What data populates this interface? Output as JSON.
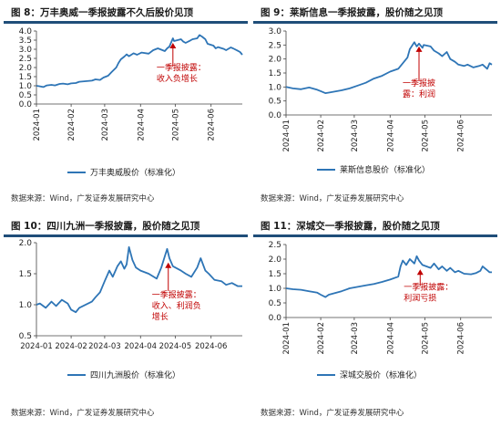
{
  "chart_data": [
    {
      "type": "line",
      "title": "图 8：万丰奥威一季报披露不久后股价见顶",
      "source": "数据来源：Wind，广发证券发展研究中心",
      "legend": "万丰奥威股价（标准化）",
      "legend_position": "bottom-center",
      "grid": false,
      "xlabel": "",
      "ylabel": "",
      "ylim": [
        0.0,
        4.0
      ],
      "yticks": [
        "0.0",
        "0.5",
        "1.0",
        "1.5",
        "2.0",
        "2.5",
        "3.0",
        "3.5",
        "4.0"
      ],
      "x_range": [
        "2024-01-02",
        "2024-06-28"
      ],
      "xticks": [
        {
          "date": "2024-01-01",
          "label": "2024-01"
        },
        {
          "date": "2024-02-01",
          "label": "2024-02"
        },
        {
          "date": "2024-03-01",
          "label": "2024-03"
        },
        {
          "date": "2024-04-01",
          "label": "2024-04"
        },
        {
          "date": "2024-05-01",
          "label": "2024-05"
        },
        {
          "date": "2024-06-01",
          "label": "2024-06"
        }
      ],
      "series": [
        {
          "color": "#2e75b6",
          "points": [
            [
              "2024-01-02",
              1.0
            ],
            [
              "2024-01-05",
              0.97
            ],
            [
              "2024-01-08",
              0.93
            ],
            [
              "2024-01-11",
              1.02
            ],
            [
              "2024-01-15",
              1.05
            ],
            [
              "2024-01-18",
              1.02
            ],
            [
              "2024-01-22",
              1.1
            ],
            [
              "2024-01-25",
              1.12
            ],
            [
              "2024-01-29",
              1.08
            ],
            [
              "2024-02-01",
              1.13
            ],
            [
              "2024-02-05",
              1.15
            ],
            [
              "2024-02-08",
              1.22
            ],
            [
              "2024-02-19",
              1.28
            ],
            [
              "2024-02-22",
              1.35
            ],
            [
              "2024-02-26",
              1.32
            ],
            [
              "2024-02-29",
              1.45
            ],
            [
              "2024-03-04",
              1.55
            ],
            [
              "2024-03-07",
              1.75
            ],
            [
              "2024-03-11",
              2.0
            ],
            [
              "2024-03-13",
              2.25
            ],
            [
              "2024-03-15",
              2.45
            ],
            [
              "2024-03-18",
              2.6
            ],
            [
              "2024-03-20",
              2.72
            ],
            [
              "2024-03-22",
              2.62
            ],
            [
              "2024-03-26",
              2.78
            ],
            [
              "2024-03-29",
              2.7
            ],
            [
              "2024-04-02",
              2.82
            ],
            [
              "2024-04-08",
              2.76
            ],
            [
              "2024-04-12",
              2.95
            ],
            [
              "2024-04-16",
              3.05
            ],
            [
              "2024-04-18",
              3.0
            ],
            [
              "2024-04-22",
              2.9
            ],
            [
              "2024-04-24",
              3.05
            ],
            [
              "2024-04-26",
              3.15
            ],
            [
              "2024-04-29",
              3.6
            ],
            [
              "2024-04-30",
              3.45
            ],
            [
              "2024-05-06",
              3.55
            ],
            [
              "2024-05-08",
              3.42
            ],
            [
              "2024-05-10",
              3.35
            ],
            [
              "2024-05-14",
              3.48
            ],
            [
              "2024-05-16",
              3.55
            ],
            [
              "2024-05-20",
              3.6
            ],
            [
              "2024-05-22",
              3.78
            ],
            [
              "2024-05-24",
              3.7
            ],
            [
              "2024-05-27",
              3.55
            ],
            [
              "2024-05-29",
              3.3
            ],
            [
              "2024-06-03",
              3.2
            ],
            [
              "2024-06-05",
              3.05
            ],
            [
              "2024-06-07",
              3.12
            ],
            [
              "2024-06-12",
              3.02
            ],
            [
              "2024-06-14",
              2.95
            ],
            [
              "2024-06-18",
              3.1
            ],
            [
              "2024-06-20",
              3.05
            ],
            [
              "2024-06-24",
              2.92
            ],
            [
              "2024-06-26",
              2.85
            ],
            [
              "2024-06-28",
              2.7
            ]
          ]
        }
      ],
      "annotation": {
        "lines": [
          "一季报披露：",
          "收入负增长"
        ],
        "arrow_date": "2024-04-29",
        "arrow_tip_y": 3.35,
        "arrow_tail_y": 2.05,
        "label_y": 1.85,
        "color": "#c00000"
      }
    },
    {
      "type": "line",
      "title": "图 9：莱斯信息一季报披露，股价随之见顶",
      "source": "数据来源：Wind，广发证券发展研究中心",
      "legend": "莱斯信息股价（标准化）",
      "legend_position": "bottom-center",
      "grid": false,
      "xlabel": "",
      "ylabel": "",
      "ylim": [
        0.0,
        3.0
      ],
      "yticks": [
        "0.0",
        "0.5",
        "1.0",
        "1.5",
        "2.0",
        "2.5",
        "3.0"
      ],
      "x_range": [
        "2024-01-02",
        "2024-06-28"
      ],
      "xticks": [
        {
          "date": "2024-01-01",
          "label": "2024-01"
        },
        {
          "date": "2024-02-01",
          "label": "2024-02"
        },
        {
          "date": "2024-03-01",
          "label": "2024-03"
        },
        {
          "date": "2024-04-01",
          "label": "2024-04"
        },
        {
          "date": "2024-05-01",
          "label": "2024-05"
        },
        {
          "date": "2024-06-01",
          "label": "2024-06"
        }
      ],
      "series": [
        {
          "color": "#2e75b6",
          "points": [
            [
              "2024-01-02",
              1.0
            ],
            [
              "2024-01-08",
              0.95
            ],
            [
              "2024-01-15",
              0.92
            ],
            [
              "2024-01-22",
              0.98
            ],
            [
              "2024-01-29",
              0.9
            ],
            [
              "2024-02-01",
              0.85
            ],
            [
              "2024-02-05",
              0.78
            ],
            [
              "2024-02-08",
              0.8
            ],
            [
              "2024-02-19",
              0.88
            ],
            [
              "2024-02-26",
              0.95
            ],
            [
              "2024-03-04",
              1.05
            ],
            [
              "2024-03-11",
              1.15
            ],
            [
              "2024-03-18",
              1.3
            ],
            [
              "2024-03-25",
              1.4
            ],
            [
              "2024-04-01",
              1.55
            ],
            [
              "2024-04-08",
              1.65
            ],
            [
              "2024-04-12",
              1.85
            ],
            [
              "2024-04-16",
              2.05
            ],
            [
              "2024-04-18",
              2.35
            ],
            [
              "2024-04-22",
              2.6
            ],
            [
              "2024-04-24",
              2.45
            ],
            [
              "2024-04-26",
              2.55
            ],
            [
              "2024-04-29",
              2.4
            ],
            [
              "2024-04-30",
              2.5
            ],
            [
              "2024-05-06",
              2.45
            ],
            [
              "2024-05-09",
              2.3
            ],
            [
              "2024-05-13",
              2.2
            ],
            [
              "2024-05-16",
              2.1
            ],
            [
              "2024-05-20",
              2.25
            ],
            [
              "2024-05-23",
              2.0
            ],
            [
              "2024-05-27",
              1.9
            ],
            [
              "2024-05-30",
              1.8
            ],
            [
              "2024-06-04",
              1.75
            ],
            [
              "2024-06-07",
              1.8
            ],
            [
              "2024-06-12",
              1.7
            ],
            [
              "2024-06-17",
              1.75
            ],
            [
              "2024-06-20",
              1.8
            ],
            [
              "2024-06-24",
              1.65
            ],
            [
              "2024-06-26",
              1.85
            ],
            [
              "2024-06-28",
              1.8
            ]
          ]
        }
      ],
      "annotation": {
        "lines": [
          "一季报披",
          "露：利润"
        ],
        "arrow_date": "2024-04-26",
        "arrow_tip_y": 2.45,
        "arrow_tail_y": 1.22,
        "label_y": 1.05,
        "color": "#c00000"
      }
    },
    {
      "type": "line",
      "title": "图 10：四川九洲一季报披露，股价随之见顶",
      "source": "数据来源：Wind，广发证券发展研究中心",
      "legend": "四川九洲股价（标准化）",
      "legend_position": "bottom-center",
      "grid": false,
      "xlabel": "",
      "ylabel": "",
      "ylim": [
        0.5,
        2.0
      ],
      "yticks": [
        "0.5",
        "1.0",
        "1.5",
        "2.0"
      ],
      "x_range": [
        "2024-01-02",
        "2024-06-28"
      ],
      "xticks": [
        {
          "date": "2024-01-01",
          "label": "2024-01"
        },
        {
          "date": "2024-02-01",
          "label": "2024-02"
        },
        {
          "date": "2024-03-01",
          "label": "2024-03"
        },
        {
          "date": "2024-04-01",
          "label": "2024-04"
        },
        {
          "date": "2024-05-01",
          "label": "2024-05"
        },
        {
          "date": "2024-06-01",
          "label": "2024-06"
        }
      ],
      "series": [
        {
          "color": "#2e75b6",
          "points": [
            [
              "2024-01-02",
              1.0
            ],
            [
              "2024-01-05",
              1.02
            ],
            [
              "2024-01-10",
              0.95
            ],
            [
              "2024-01-15",
              1.05
            ],
            [
              "2024-01-19",
              0.98
            ],
            [
              "2024-01-24",
              1.08
            ],
            [
              "2024-01-29",
              1.02
            ],
            [
              "2024-02-01",
              0.92
            ],
            [
              "2024-02-05",
              0.88
            ],
            [
              "2024-02-08",
              0.95
            ],
            [
              "2024-02-19",
              1.05
            ],
            [
              "2024-02-22",
              1.12
            ],
            [
              "2024-02-26",
              1.2
            ],
            [
              "2024-03-01",
              1.38
            ],
            [
              "2024-03-05",
              1.55
            ],
            [
              "2024-03-08",
              1.45
            ],
            [
              "2024-03-12",
              1.62
            ],
            [
              "2024-03-15",
              1.7
            ],
            [
              "2024-03-18",
              1.58
            ],
            [
              "2024-03-20",
              1.65
            ],
            [
              "2024-03-22",
              1.93
            ],
            [
              "2024-03-25",
              1.72
            ],
            [
              "2024-03-28",
              1.6
            ],
            [
              "2024-04-01",
              1.55
            ],
            [
              "2024-04-08",
              1.5
            ],
            [
              "2024-04-15",
              1.42
            ],
            [
              "2024-04-19",
              1.6
            ],
            [
              "2024-04-22",
              1.78
            ],
            [
              "2024-04-24",
              1.9
            ],
            [
              "2024-04-26",
              1.75
            ],
            [
              "2024-04-29",
              1.62
            ],
            [
              "2024-05-06",
              1.55
            ],
            [
              "2024-05-10",
              1.5
            ],
            [
              "2024-05-15",
              1.45
            ],
            [
              "2024-05-20",
              1.6
            ],
            [
              "2024-05-23",
              1.75
            ],
            [
              "2024-05-27",
              1.55
            ],
            [
              "2024-05-30",
              1.5
            ],
            [
              "2024-06-04",
              1.4
            ],
            [
              "2024-06-10",
              1.38
            ],
            [
              "2024-06-14",
              1.32
            ],
            [
              "2024-06-19",
              1.35
            ],
            [
              "2024-06-24",
              1.3
            ],
            [
              "2024-06-28",
              1.3
            ]
          ]
        }
      ],
      "annotation": {
        "lines": [
          "一季报披露：",
          "收入、利润负",
          "增长"
        ],
        "arrow_date": "2024-04-25",
        "arrow_tip_y": 1.68,
        "arrow_tail_y": 1.22,
        "label_y": 1.12,
        "color": "#c00000"
      }
    },
    {
      "type": "line",
      "title": "图 11：深城交一季报披露，股价随之见顶",
      "source": "数据来源：Wind，广发证券发展研究中心",
      "legend": "深城交股价（标准化）",
      "legend_position": "bottom-center",
      "grid": false,
      "xlabel": "",
      "ylabel": "",
      "ylim": [
        0.0,
        2.5
      ],
      "yticks": [
        "0.0",
        "0.5",
        "1.0",
        "1.5",
        "2.0",
        "2.5"
      ],
      "x_range": [
        "2024-01-02",
        "2024-06-28"
      ],
      "xticks": [
        {
          "date": "2024-01-01",
          "label": "2024-01"
        },
        {
          "date": "2024-02-01",
          "label": "2024-02"
        },
        {
          "date": "2024-03-01",
          "label": "2024-03"
        },
        {
          "date": "2024-04-01",
          "label": "2024-04"
        },
        {
          "date": "2024-05-01",
          "label": "2024-05"
        },
        {
          "date": "2024-06-01",
          "label": "2024-06"
        }
      ],
      "series": [
        {
          "color": "#2e75b6",
          "points": [
            [
              "2024-01-02",
              1.0
            ],
            [
              "2024-01-08",
              0.97
            ],
            [
              "2024-01-15",
              0.95
            ],
            [
              "2024-01-22",
              0.9
            ],
            [
              "2024-01-29",
              0.85
            ],
            [
              "2024-02-01",
              0.78
            ],
            [
              "2024-02-05",
              0.7
            ],
            [
              "2024-02-08",
              0.78
            ],
            [
              "2024-02-19",
              0.9
            ],
            [
              "2024-02-26",
              1.0
            ],
            [
              "2024-03-04",
              1.05
            ],
            [
              "2024-03-11",
              1.1
            ],
            [
              "2024-03-18",
              1.15
            ],
            [
              "2024-03-25",
              1.22
            ],
            [
              "2024-04-01",
              1.3
            ],
            [
              "2024-04-08",
              1.4
            ],
            [
              "2024-04-10",
              1.75
            ],
            [
              "2024-04-12",
              1.95
            ],
            [
              "2024-04-15",
              1.8
            ],
            [
              "2024-04-18",
              2.0
            ],
            [
              "2024-04-22",
              1.85
            ],
            [
              "2024-04-24",
              2.1
            ],
            [
              "2024-04-26",
              1.95
            ],
            [
              "2024-04-29",
              1.8
            ],
            [
              "2024-05-06",
              1.7
            ],
            [
              "2024-05-09",
              1.85
            ],
            [
              "2024-05-13",
              1.65
            ],
            [
              "2024-05-16",
              1.75
            ],
            [
              "2024-05-20",
              1.6
            ],
            [
              "2024-05-23",
              1.7
            ],
            [
              "2024-05-27",
              1.55
            ],
            [
              "2024-05-30",
              1.6
            ],
            [
              "2024-06-04",
              1.5
            ],
            [
              "2024-06-10",
              1.48
            ],
            [
              "2024-06-14",
              1.52
            ],
            [
              "2024-06-18",
              1.6
            ],
            [
              "2024-06-20",
              1.75
            ],
            [
              "2024-06-24",
              1.62
            ],
            [
              "2024-06-26",
              1.55
            ],
            [
              "2024-06-28",
              1.55
            ]
          ]
        }
      ],
      "annotation": {
        "lines": [
          "一季报披露：",
          "利润亏损"
        ],
        "arrow_date": "2024-04-27",
        "arrow_tip_y": 1.65,
        "arrow_tail_y": 1.08,
        "label_y": 0.95,
        "color": "#c00000"
      }
    }
  ]
}
